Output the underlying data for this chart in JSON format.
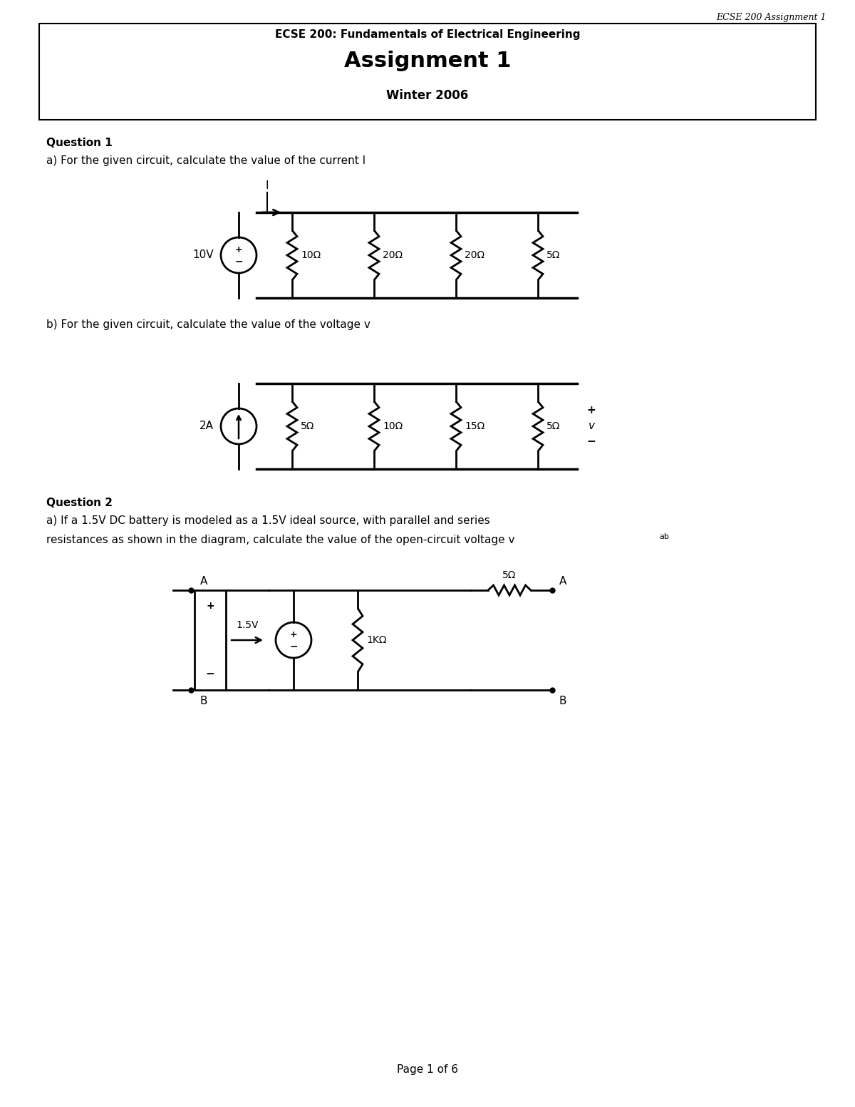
{
  "header_italic": "ECSE 200 Assignment 1",
  "box_title1": "ECSE 200: Fundamentals of Electrical Engineering",
  "box_title2": "Assignment 1",
  "box_title3": "Winter 2006",
  "q1_label": "Question 1",
  "q1a_text": "a) For the given circuit, calculate the value of the current I",
  "q1b_text": "b) For the given circuit, calculate the value of the voltage v",
  "q2_label": "Question 2",
  "q2a_line1": "a) If a 1.5V DC battery is modeled as a 1.5V ideal source, with parallel and series",
  "q2a_line2": "resistances as shown in the diagram, calculate the value of the open-circuit voltage v",
  "q2a_subscript": "ab",
  "page_footer": "Page 1 of 6",
  "bg_color": "#ffffff",
  "text_color": "#000000",
  "res_labels_1a": [
    "10Ω",
    "20Ω",
    "20Ω",
    "5Ω"
  ],
  "res_labels_1b": [
    "5Ω",
    "10Ω",
    "15Ω",
    "5Ω"
  ]
}
